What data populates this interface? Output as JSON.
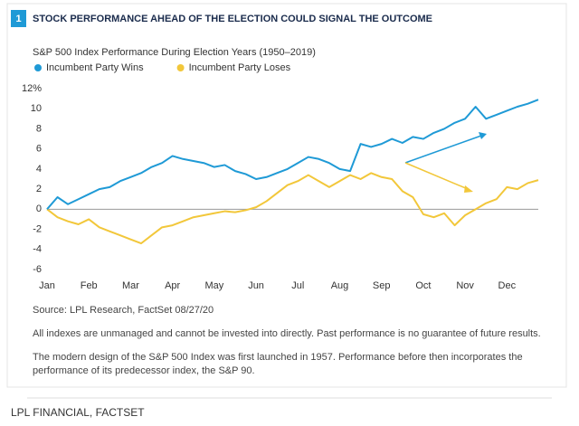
{
  "number": "1",
  "chart_data": {
    "type": "line",
    "title": "STOCK PERFORMANCE AHEAD OF THE ELECTION COULD SIGNAL THE OUTCOME",
    "subtitle": "S&P 500 Index Performance During Election Years (1950–2019)",
    "categories": [
      "Jan",
      null,
      null,
      null,
      "Feb",
      null,
      null,
      null,
      "Mar",
      null,
      null,
      null,
      "Apr",
      null,
      null,
      null,
      "May",
      null,
      null,
      null,
      "Jun",
      null,
      null,
      null,
      "Jul",
      null,
      null,
      null,
      "Aug",
      null,
      null,
      null,
      "Sep",
      null,
      null,
      null,
      "Oct",
      null,
      null,
      null,
      "Nov",
      null,
      null,
      null,
      "Dec",
      null,
      null,
      null
    ],
    "series": [
      {
        "name": "Incumbent Party Wins",
        "color": "#1f9ad6",
        "values": [
          0,
          1.2,
          0.5,
          1.0,
          1.5,
          2.0,
          2.2,
          2.8,
          3.2,
          3.6,
          4.2,
          4.6,
          5.3,
          5.0,
          4.8,
          4.6,
          4.2,
          4.4,
          3.8,
          3.5,
          3.0,
          3.2,
          3.6,
          4.0,
          4.6,
          5.2,
          5.0,
          4.6,
          4.0,
          3.8,
          6.5,
          6.2,
          6.5,
          7.0,
          6.6,
          7.2,
          7.0,
          7.6,
          8.0,
          8.6,
          9.0,
          10.2,
          9.0,
          9.4,
          9.8,
          10.2,
          10.5,
          10.9
        ]
      },
      {
        "name": "Incumbent Party Loses",
        "color": "#f2c73a",
        "values": [
          0,
          -0.8,
          -1.2,
          -1.5,
          -1.0,
          -1.8,
          -2.2,
          -2.6,
          -3.0,
          -3.4,
          -2.6,
          -1.8,
          -1.6,
          -1.2,
          -0.8,
          -0.6,
          -0.4,
          -0.2,
          -0.3,
          -0.1,
          0.2,
          0.8,
          1.6,
          2.4,
          2.8,
          3.4,
          2.8,
          2.2,
          2.8,
          3.4,
          3.0,
          3.6,
          3.2,
          3.0,
          1.8,
          1.2,
          -0.5,
          -0.8,
          -0.4,
          -1.6,
          -0.6,
          0.0,
          0.6,
          1.0,
          2.2,
          2.0,
          2.6,
          2.9
        ]
      }
    ],
    "ylim": [
      -6,
      12
    ],
    "yticks": [
      -6,
      -4,
      -2,
      0,
      2,
      4,
      6,
      8,
      10,
      {
        "value": 12,
        "label": "12%"
      }
    ],
    "grid": false,
    "source": "Source: LPL Research, FactSet  08/27/20",
    "notes": [
      "All indexes are unmanaged and cannot be invested into directly. Past performance is no guarantee of future results.",
      "The modern design of the S&P 500 Index was first launched in 1957. Performance before then incorporates the performance of its  predecessor index, the S&P 90."
    ]
  },
  "footer": "LPL FINANCIAL, FACTSET"
}
